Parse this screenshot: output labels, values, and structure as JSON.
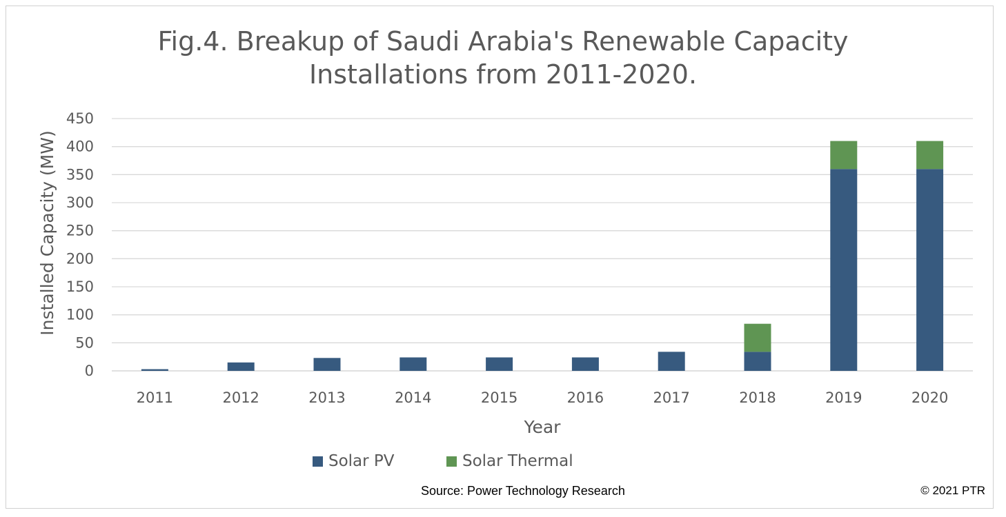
{
  "chart_data": {
    "type": "bar",
    "stacked": true,
    "title_lines": [
      "Fig.4. Breakup of Saudi Arabia's Renewable Capacity",
      "Installations from 2011-2020."
    ],
    "xlabel": "Year",
    "ylabel": "Installed Capacity (MW)",
    "categories": [
      "2011",
      "2012",
      "2013",
      "2014",
      "2015",
      "2016",
      "2017",
      "2018",
      "2019",
      "2020"
    ],
    "yticks": [
      "0",
      "50",
      "100",
      "150",
      "200",
      "250",
      "300",
      "350",
      "400",
      "450"
    ],
    "ylim": [
      0,
      450
    ],
    "grid": true,
    "legend_position": "bottom",
    "series": [
      {
        "name": "Solar PV",
        "color": "#375a7f",
        "values": [
          3,
          15,
          23,
          24,
          24,
          24,
          34,
          34,
          360,
          360
        ]
      },
      {
        "name": "Solar Thermal",
        "color": "#5f9553",
        "values": [
          0,
          0,
          0,
          0,
          0,
          0,
          0,
          50,
          50,
          50
        ]
      }
    ],
    "source": "Source: Power Technology Research",
    "copyright": "© 2021 PTR"
  }
}
